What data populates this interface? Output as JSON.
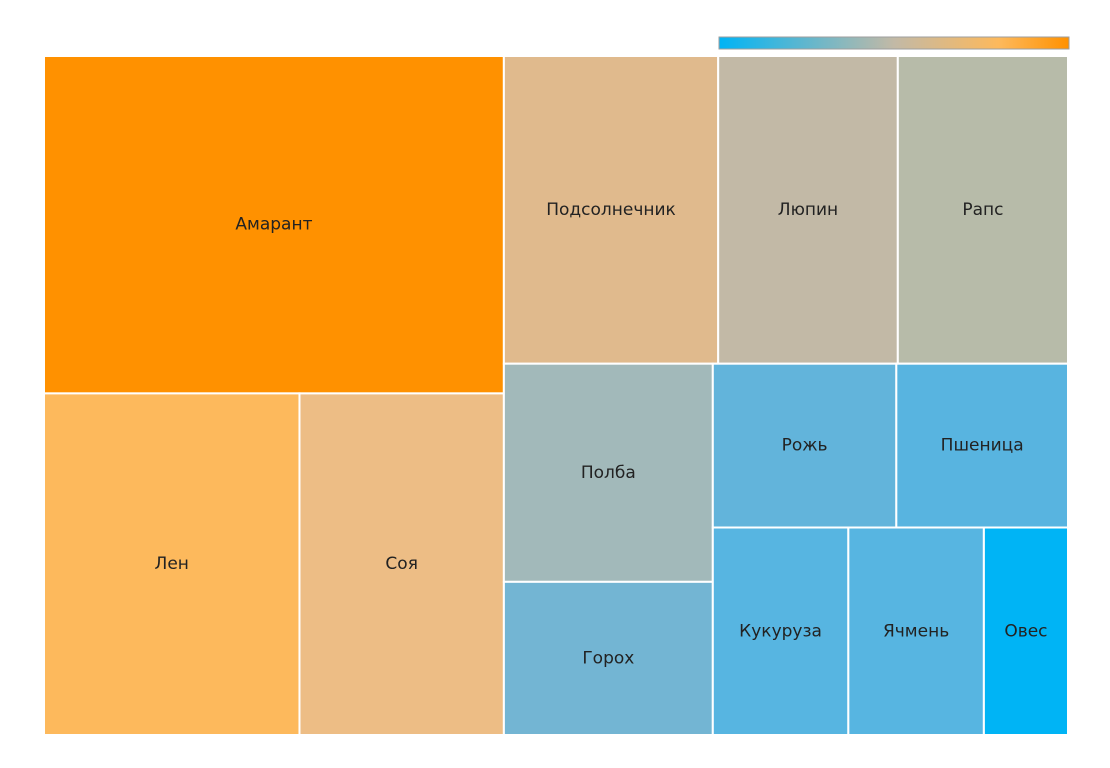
{
  "chart_data": {
    "type": "treemap",
    "items": [
      {
        "label": "Амарант",
        "value": 160,
        "color": "#ff9100"
      },
      {
        "label": "Лен",
        "value": 90,
        "color": "#fdb95c"
      },
      {
        "label": "Соя",
        "value": 72,
        "color": "#edbd85"
      },
      {
        "label": "Подсолнечник",
        "value": 68,
        "color": "#e0ba8d"
      },
      {
        "label": "Люпин",
        "value": 57,
        "color": "#c2b9a6"
      },
      {
        "label": "Рапс",
        "value": 54,
        "color": "#b7bba9"
      },
      {
        "label": "Полба",
        "value": 47,
        "color": "#a2b9ba"
      },
      {
        "label": "Горох",
        "value": 33,
        "color": "#73b5d3"
      },
      {
        "label": "Рожь",
        "value": 31,
        "color": "#62b4db"
      },
      {
        "label": "Пшеница",
        "value": 29,
        "color": "#58b4e0"
      },
      {
        "label": "Кукуруза",
        "value": 29,
        "color": "#57b5e1"
      },
      {
        "label": "Ячмень",
        "value": 29,
        "color": "#57b5e1"
      },
      {
        "label": "Овес",
        "value": 18,
        "color": "#00b4f5"
      }
    ],
    "colorbar": {
      "orientation": "horizontal",
      "placement": "top-right",
      "colors": [
        "#00b4f5",
        "#c2b9a6",
        "#ff9100"
      ]
    }
  }
}
